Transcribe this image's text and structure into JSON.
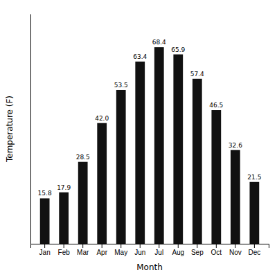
{
  "chart_data": {
    "type": "bar",
    "categories": [
      "Jan",
      "Feb",
      "Mar",
      "Apr",
      "May",
      "Jun",
      "Jul",
      "Aug",
      "Sep",
      "Oct",
      "Nov",
      "Dec"
    ],
    "values": [
      15.8,
      17.9,
      28.5,
      42.0,
      53.5,
      63.4,
      68.4,
      65.9,
      57.4,
      46.5,
      32.6,
      21.5
    ],
    "value_labels": [
      "15.8",
      "17.9",
      "28.5",
      "42.0",
      "53.5",
      "63.4",
      "68.4",
      "65.9",
      "57.4",
      "46.5",
      "32.6",
      "21.5"
    ],
    "color": "#111111",
    "xlabel": "Month",
    "ylabel": "Temperature (F)",
    "ylim": [
      0,
      80
    ],
    "grid": false,
    "data_labels": true,
    "tick_labels": "x"
  }
}
